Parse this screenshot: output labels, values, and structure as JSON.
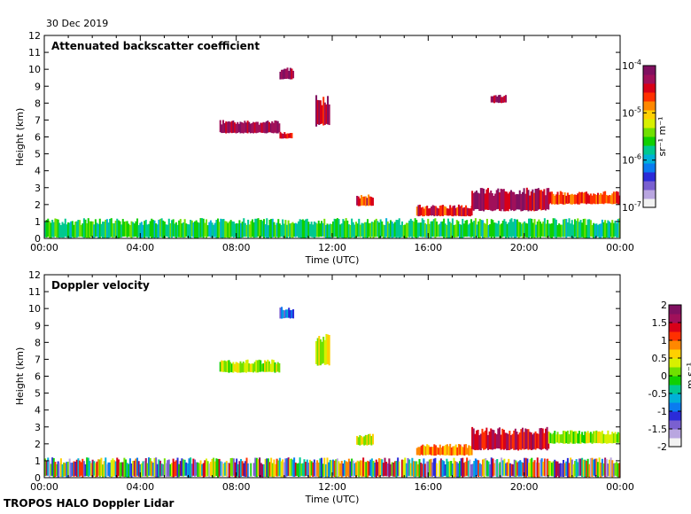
{
  "header": {
    "date": "30 Dec 2019"
  },
  "footer": {
    "label": "TROPOS HALO Doppler Lidar"
  },
  "palette": [
    "#f2f2f2",
    "#b9a6e0",
    "#7a60d0",
    "#2b2bd8",
    "#0a7bf0",
    "#00b0d8",
    "#00c890",
    "#10d000",
    "#70e000",
    "#d8f000",
    "#ffd000",
    "#ff8800",
    "#ff3000",
    "#d80018",
    "#a0105a",
    "#801060"
  ],
  "chart_data": [
    {
      "type": "heatmap",
      "title": "Attenuated backscatter coefficient",
      "xlabel": "Time (UTC)",
      "ylabel": "Height (km)",
      "x_ticks": [
        "00:00",
        "04:00",
        "08:00",
        "12:00",
        "16:00",
        "20:00",
        "00:00"
      ],
      "y_ticks": [
        "0",
        "1",
        "2",
        "3",
        "4",
        "5",
        "6",
        "7",
        "8",
        "9",
        "10",
        "11",
        "12"
      ],
      "xlim_hours": [
        0,
        24
      ],
      "ylim_km": [
        0,
        12
      ],
      "colorbar": {
        "label": "sr⁻¹ m⁻¹",
        "scale": "log",
        "ticks": [
          {
            "base": "10",
            "exp": "-4",
            "value": 0.0001
          },
          {
            "base": "10",
            "exp": "-5",
            "value": 1e-05
          },
          {
            "base": "10",
            "exp": "-6",
            "value": 1e-06
          },
          {
            "base": "10",
            "exp": "-7",
            "value": 1e-07
          }
        ],
        "range": [
          1e-07,
          0.0001
        ]
      },
      "features": [
        {
          "start_h": 0.0,
          "end_h": 24.0,
          "bottom_km": 0.0,
          "top_km": 1.2,
          "level": 0.45,
          "note_level_fraction": true
        },
        {
          "start_h": 7.3,
          "end_h": 9.8,
          "bottom_km": 6.2,
          "top_km": 7.0,
          "level": 0.92
        },
        {
          "start_h": 9.8,
          "end_h": 10.3,
          "bottom_km": 5.9,
          "top_km": 6.3,
          "level": 0.85
        },
        {
          "start_h": 9.8,
          "end_h": 10.4,
          "bottom_km": 9.4,
          "top_km": 10.1,
          "level": 0.95
        },
        {
          "start_h": 11.3,
          "end_h": 11.9,
          "bottom_km": 6.6,
          "top_km": 8.5,
          "level": 0.88
        },
        {
          "start_h": 18.6,
          "end_h": 19.2,
          "bottom_km": 8.0,
          "top_km": 8.5,
          "level": 0.9
        },
        {
          "start_h": 13.0,
          "end_h": 13.7,
          "bottom_km": 1.9,
          "top_km": 2.6,
          "level": 0.8
        },
        {
          "start_h": 15.5,
          "end_h": 17.8,
          "bottom_km": 1.3,
          "top_km": 2.0,
          "level": 0.82
        },
        {
          "start_h": 17.8,
          "end_h": 21.0,
          "bottom_km": 1.6,
          "top_km": 3.0,
          "level": 0.9
        },
        {
          "start_h": 21.0,
          "end_h": 24.0,
          "bottom_km": 2.0,
          "top_km": 2.8,
          "level": 0.78
        }
      ]
    },
    {
      "type": "heatmap",
      "title": "Doppler velocity",
      "xlabel": "Time (UTC)",
      "ylabel": "Height (km)",
      "x_ticks": [
        "00:00",
        "04:00",
        "08:00",
        "12:00",
        "16:00",
        "20:00",
        "00:00"
      ],
      "y_ticks": [
        "0",
        "1",
        "2",
        "3",
        "4",
        "5",
        "6",
        "7",
        "8",
        "9",
        "10",
        "11",
        "12"
      ],
      "xlim_hours": [
        0,
        24
      ],
      "ylim_km": [
        0,
        12
      ],
      "colorbar": {
        "label": "m s⁻¹",
        "scale": "linear",
        "ticks": [
          "2",
          "1.5",
          "1",
          "0.5",
          "0",
          "-0.5",
          "-1",
          "-1.5",
          "-2"
        ],
        "range": [
          -2,
          2
        ]
      },
      "features": [
        {
          "start_h": 0.0,
          "end_h": 24.0,
          "bottom_km": 0.0,
          "top_km": 1.2,
          "level": 0.5
        },
        {
          "start_h": 7.3,
          "end_h": 9.8,
          "bottom_km": 6.2,
          "top_km": 7.0,
          "level": 0.55
        },
        {
          "start_h": 9.8,
          "end_h": 10.4,
          "bottom_km": 9.4,
          "top_km": 10.1,
          "level": 0.25
        },
        {
          "start_h": 11.3,
          "end_h": 11.9,
          "bottom_km": 6.6,
          "top_km": 8.5,
          "level": 0.6
        },
        {
          "start_h": 13.0,
          "end_h": 13.7,
          "bottom_km": 1.9,
          "top_km": 2.6,
          "level": 0.6
        },
        {
          "start_h": 15.5,
          "end_h": 17.8,
          "bottom_km": 1.3,
          "top_km": 2.0,
          "level": 0.7
        },
        {
          "start_h": 17.8,
          "end_h": 21.0,
          "bottom_km": 1.6,
          "top_km": 3.0,
          "level": 0.85
        },
        {
          "start_h": 21.0,
          "end_h": 24.0,
          "bottom_km": 2.0,
          "top_km": 2.8,
          "level": 0.55
        }
      ]
    }
  ]
}
